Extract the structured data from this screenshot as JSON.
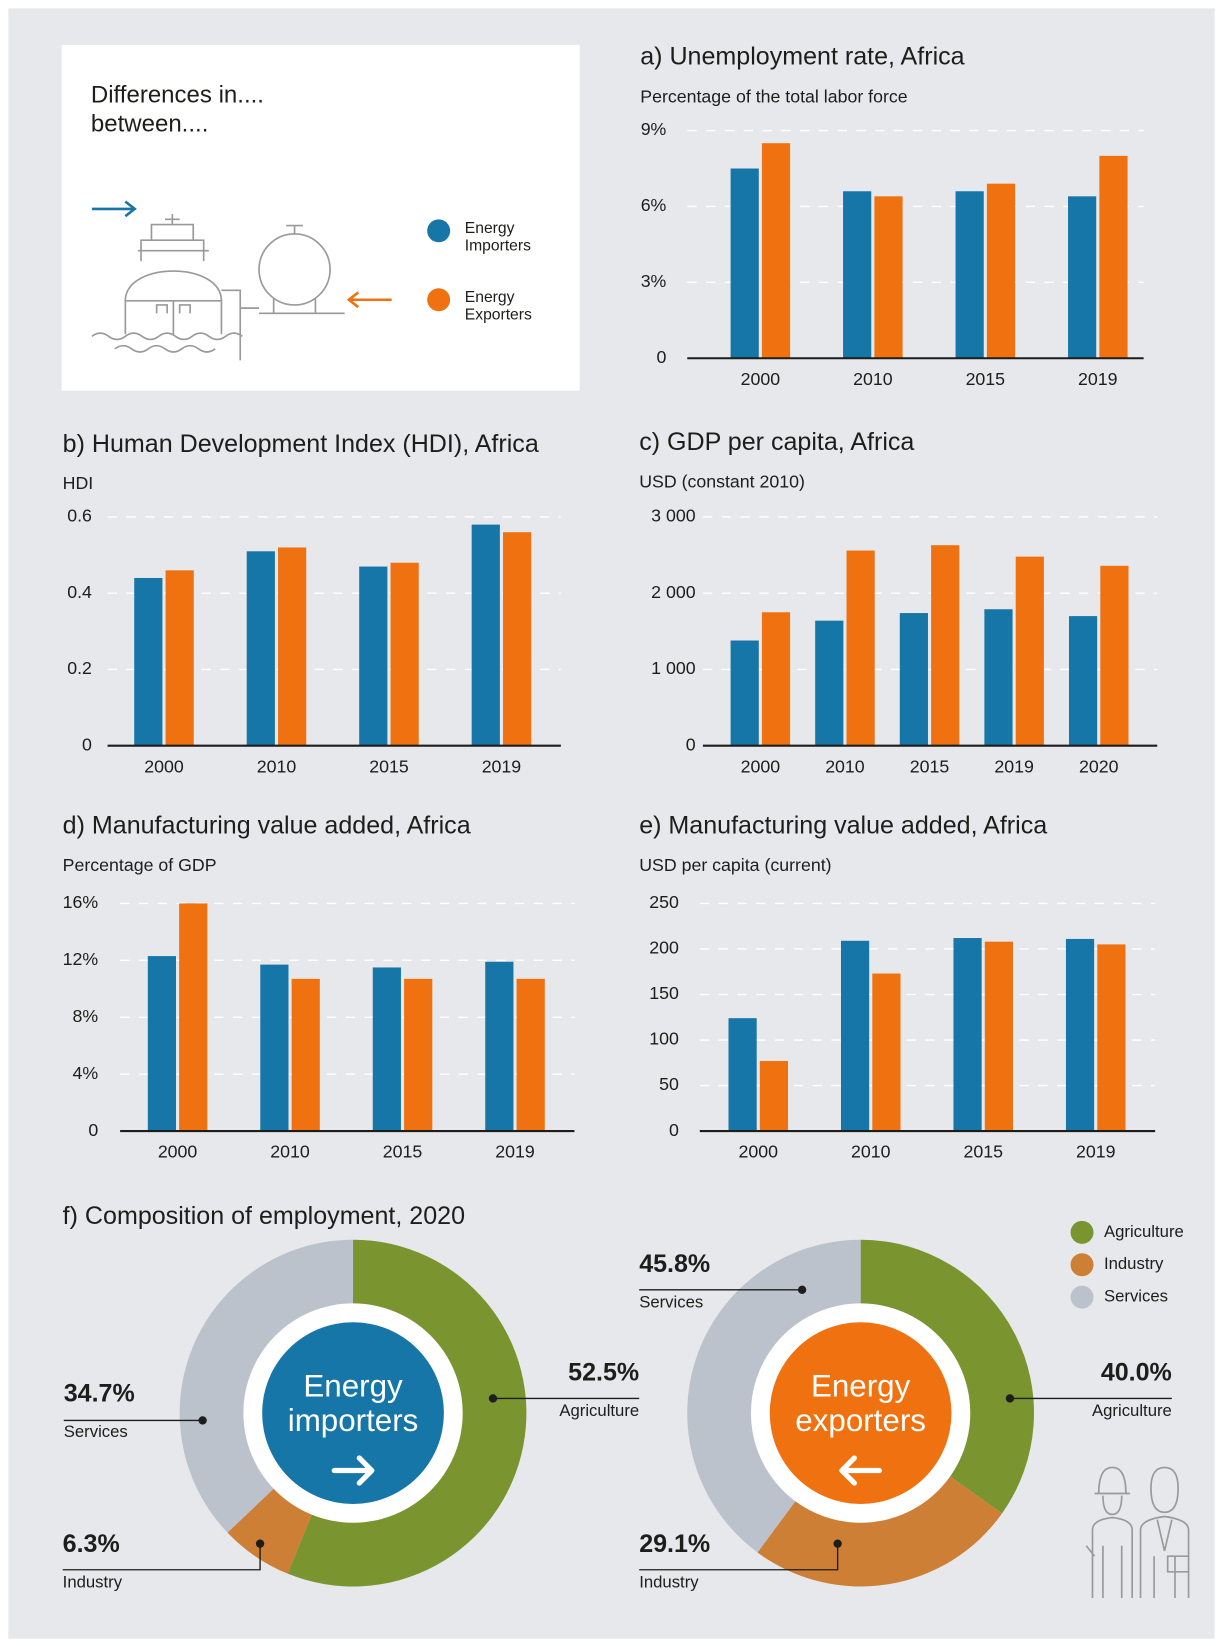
{
  "intro": {
    "title_lines": [
      "Differences in....",
      "between...."
    ]
  },
  "chart_data": [
    {
      "type": "bar",
      "title": "a) Unemployment rate, Africa",
      "subtitle": "Percentage of the total labor force",
      "categories": [
        "2000",
        "2010",
        "2015",
        "2019"
      ],
      "series": [
        {
          "name": "Energy Importers",
          "color": "#1776a8",
          "values": [
            7.5,
            6.6,
            6.6,
            6.4
          ]
        },
        {
          "name": "Energy Exporters",
          "color": "#ef7110",
          "values": [
            8.5,
            6.4,
            6.9,
            8.0
          ]
        }
      ],
      "ylim": [
        0,
        9
      ],
      "yticks": [
        0,
        {
          "value": 3,
          "label": "3%"
        },
        {
          "value": 6,
          "label": "6%"
        },
        {
          "value": 9,
          "label": "9%"
        }
      ],
      "grid": true
    },
    {
      "type": "bar",
      "title": "b) Human Development Index (HDI), Africa",
      "subtitle": "HDI",
      "categories": [
        "2000",
        "2010",
        "2015",
        "2019"
      ],
      "series": [
        {
          "color": "#1776a8",
          "values": [
            0.44,
            0.51,
            0.47,
            0.58
          ]
        },
        {
          "color": "#ef7110",
          "values": [
            0.46,
            0.52,
            0.48,
            0.56
          ]
        }
      ],
      "ylim": [
        0,
        0.6
      ],
      "yticks": [
        0,
        0.2,
        0.4,
        0.6
      ],
      "grid": true
    },
    {
      "type": "bar",
      "title": "c) GDP per capita, Africa",
      "subtitle": "USD (constant 2010)",
      "categories": [
        "2000",
        "2010",
        "2015",
        "2019",
        "2020"
      ],
      "series": [
        {
          "color": "#1776a8",
          "values": [
            1380,
            1640,
            1740,
            1790,
            1700
          ]
        },
        {
          "color": "#ef7110",
          "values": [
            1750,
            2560,
            2630,
            2480,
            2360
          ]
        }
      ],
      "ylim": [
        0,
        3000
      ],
      "yticks": [
        0,
        {
          "value": 1000,
          "label": "1 000"
        },
        {
          "value": 2000,
          "label": "2 000"
        },
        {
          "value": 3000,
          "label": "3 000"
        }
      ],
      "grid": true
    },
    {
      "type": "bar",
      "title": "d) Manufacturing value added, Africa",
      "subtitle": "Percentage of GDP",
      "categories": [
        "2000",
        "2010",
        "2015",
        "2019"
      ],
      "series": [
        {
          "color": "#1776a8",
          "values": [
            12.3,
            11.7,
            11.5,
            11.9
          ]
        },
        {
          "color": "#ef7110",
          "values": [
            16.0,
            10.7,
            10.7,
            10.7
          ]
        }
      ],
      "ylim": [
        0,
        16
      ],
      "yticks": [
        0,
        {
          "value": 4,
          "label": "4%"
        },
        {
          "value": 8,
          "label": "8%"
        },
        {
          "value": 12,
          "label": "12%"
        },
        {
          "value": 16,
          "label": "16%"
        }
      ],
      "grid": true
    },
    {
      "type": "bar",
      "title": "e) Manufacturing value added, Africa",
      "subtitle": "USD per capita (current)",
      "categories": [
        "2000",
        "2010",
        "2015",
        "2019"
      ],
      "series": [
        {
          "color": "#1776a8",
          "values": [
            124,
            209,
            212,
            211
          ]
        },
        {
          "color": "#ef7110",
          "values": [
            77,
            173,
            208,
            205
          ]
        }
      ],
      "ylim": [
        0,
        250
      ],
      "yticks": [
        0,
        50,
        100,
        150,
        200,
        250
      ],
      "grid": true
    },
    {
      "type": "donut",
      "title": "f) Composition of employment, 2020",
      "center_label": "Energy importers",
      "categories": [
        "Agriculture",
        "Industry",
        "Services"
      ],
      "colors": [
        "#7a9430",
        "#cc7f35",
        "#bcc2cc"
      ],
      "values": [
        52.5,
        6.3,
        34.7
      ],
      "value_labels": [
        "52.5%",
        "6.3%",
        "34.7%"
      ]
    },
    {
      "type": "donut",
      "center_label": "Energy exporters",
      "categories": [
        "Agriculture",
        "Industry",
        "Services"
      ],
      "colors": [
        "#7a9430",
        "#cc7f35",
        "#bcc2cc"
      ],
      "values": [
        40.0,
        29.1,
        45.8
      ],
      "value_labels": [
        "40.0%",
        "29.1%",
        "45.8%"
      ],
      "legend": true
    }
  ]
}
